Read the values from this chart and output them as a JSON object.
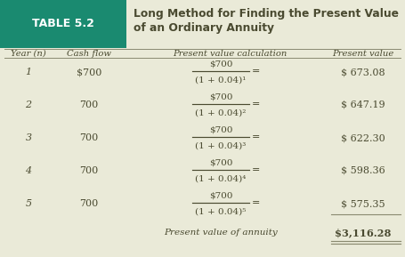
{
  "title_line1": "Long Method for Finding the Present Value",
  "title_line2": "of an Ordinary Annuity",
  "table_label": "TABLE 5.2",
  "table_bg": "#eaead8",
  "header_bg": "#1a8a70",
  "col_headers": [
    "Year (n)",
    "Cash flow",
    "Present value calculation",
    "Present value"
  ],
  "rows": [
    {
      "year": "1",
      "cash": "$700",
      "pv_num": "$700",
      "pv_den": "(1 + 0.04)¹",
      "pv_val": "$ 673.08",
      "underline": false
    },
    {
      "year": "2",
      "cash": "700",
      "pv_num": "$700",
      "pv_den": "(1 + 0.04)²",
      "pv_val": "$ 647.19",
      "underline": false
    },
    {
      "year": "3",
      "cash": "700",
      "pv_num": "$700",
      "pv_den": "(1 + 0.04)³",
      "pv_val": "$ 622.30",
      "underline": false
    },
    {
      "year": "4",
      "cash": "700",
      "pv_num": "$700",
      "pv_den": "(1 + 0.04)⁴",
      "pv_val": "$ 598.36",
      "underline": false
    },
    {
      "year": "5",
      "cash": "700",
      "pv_num": "$700",
      "pv_den": "(1 + 0.04)⁵",
      "pv_val": "$ 575.35",
      "underline": true
    }
  ],
  "annuity_label": "Present value of annuity",
  "annuity_value": "$3,116.28",
  "text_color": "#4a4a30",
  "header_text_color": "#ffffff",
  "line_color": "#8a8a70",
  "frac_color": "#4a4a30"
}
